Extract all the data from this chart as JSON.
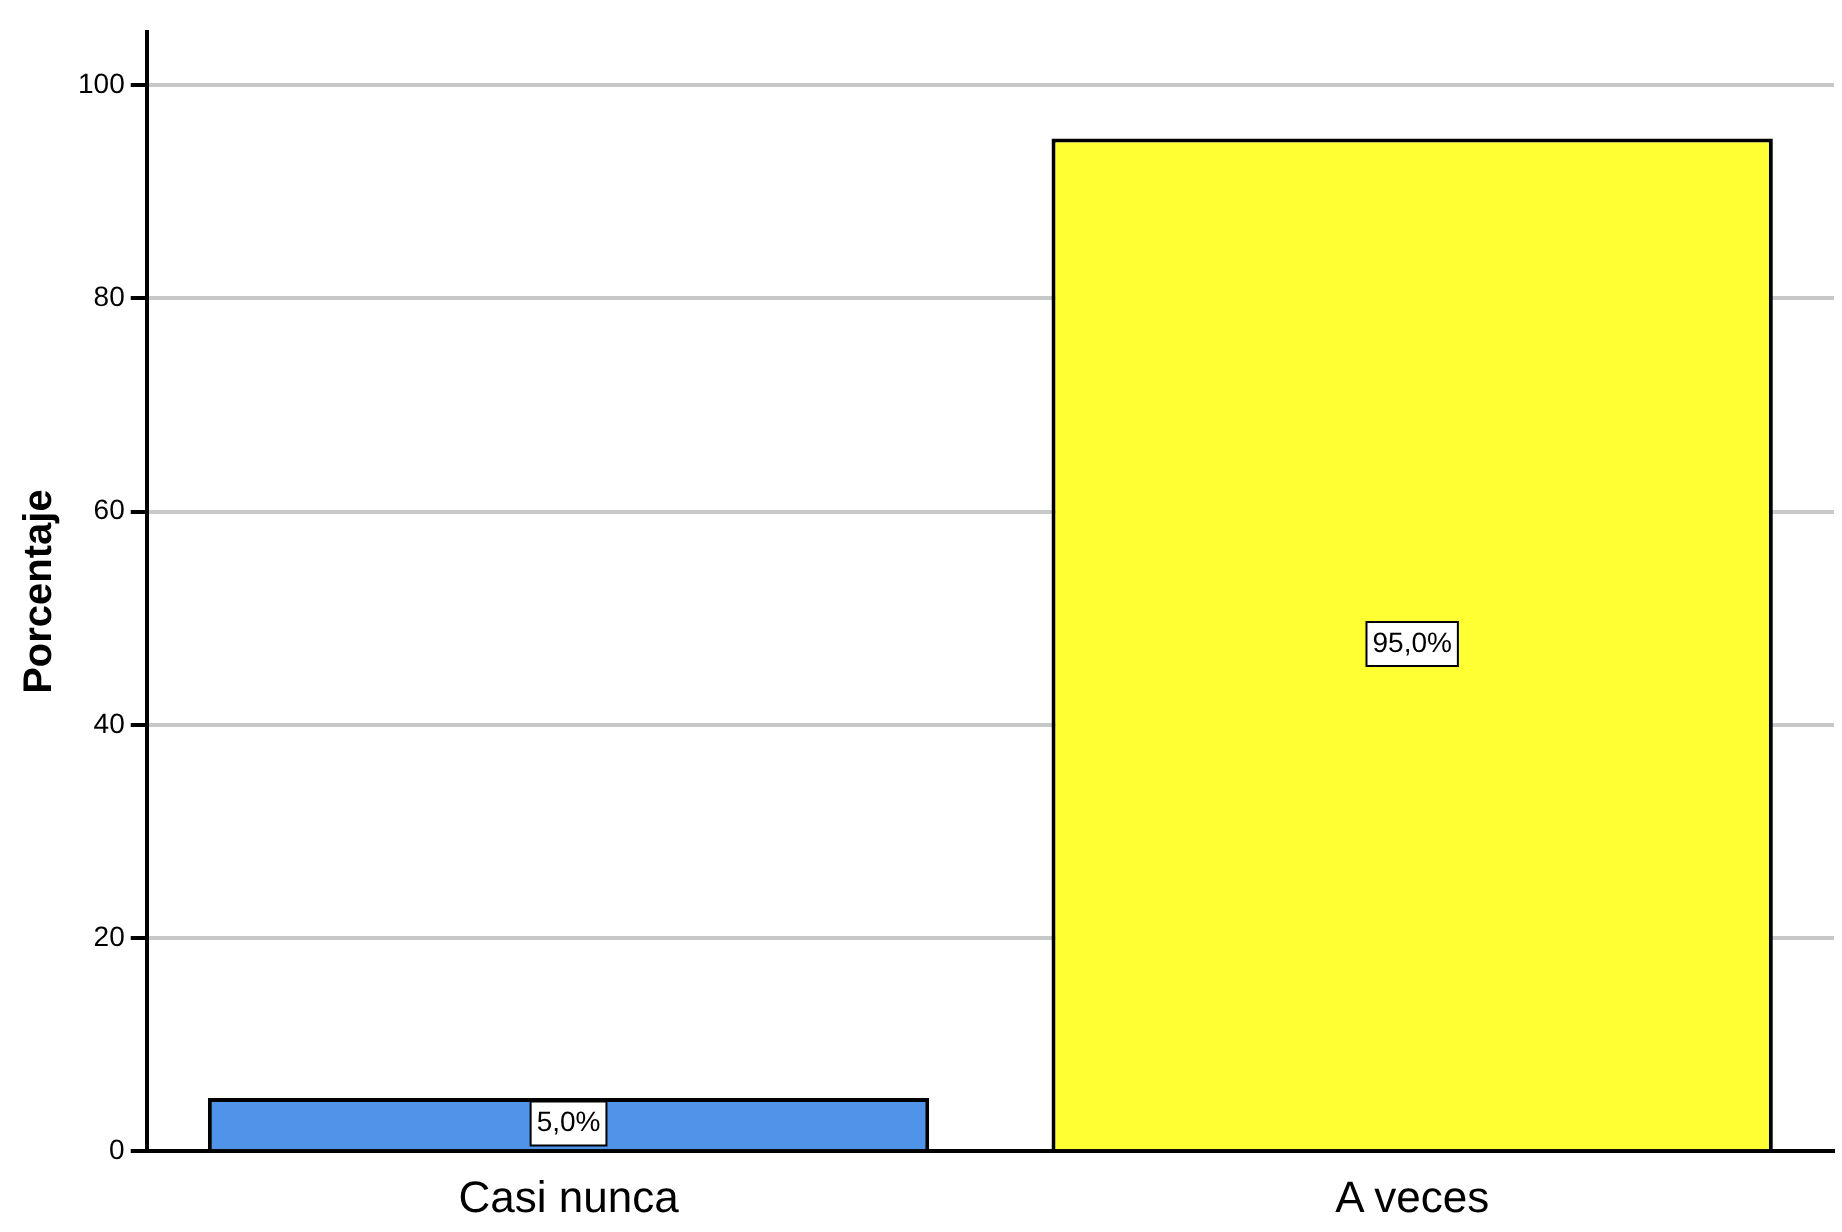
{
  "chart_data": {
    "type": "bar",
    "ylabel": "Porcentaje",
    "categories": [
      "Casi nunca",
      "A veces"
    ],
    "values": [
      5,
      95
    ],
    "colors": [
      "#4f94e8",
      "#ffff33"
    ],
    "value_labels": [
      "5,0%",
      "95,0%"
    ],
    "ylim": [
      0,
      105
    ],
    "yticks": [
      0,
      20,
      40,
      60,
      80,
      100
    ],
    "grid": "y"
  }
}
